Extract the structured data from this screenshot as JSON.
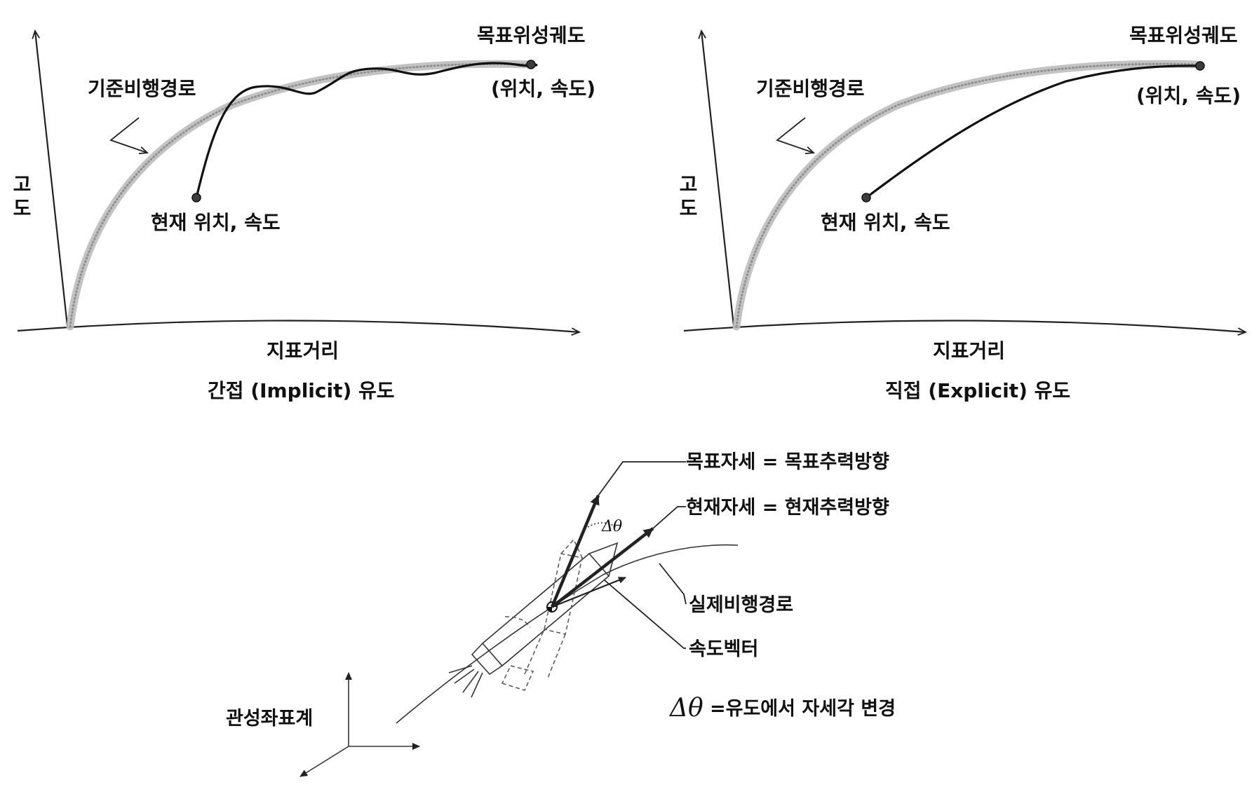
{
  "panels": {
    "implicit": {
      "caption": "간접 (Implicit) 유도",
      "y_axis_label": "고도",
      "x_axis_label": "지표거리",
      "reference_path_label": "기준비행경로",
      "target_label": "목표위성궤도",
      "target_sub_label": "(위치, 속도)",
      "current_label": "현재 위치, 속도"
    },
    "explicit": {
      "caption": "직접 (Explicit) 유도",
      "y_axis_label": "고도",
      "x_axis_label": "지표거리",
      "reference_path_label": "기준비행경로",
      "target_label": "목표위성궤도",
      "target_sub_label": "(위치, 속도)",
      "current_label": "현재 위치, 속도"
    }
  },
  "attitude_diagram": {
    "target_attitude_label": "목표자세 = 목표추력방향",
    "current_attitude_label": "현재자세 = 현재추력방향",
    "delta_symbol": "Δθ",
    "actual_path_label": "실제비행경로",
    "velocity_vector_label": "속도벡터",
    "inertial_frame_label": "관성좌표계",
    "delta_symbol_large": "Δθ",
    "delta_definition": "=유도에서 자세각 변경"
  },
  "colors": {
    "ink": "#111111",
    "reference_path": "#bdbdbd",
    "background": "#ffffff"
  }
}
